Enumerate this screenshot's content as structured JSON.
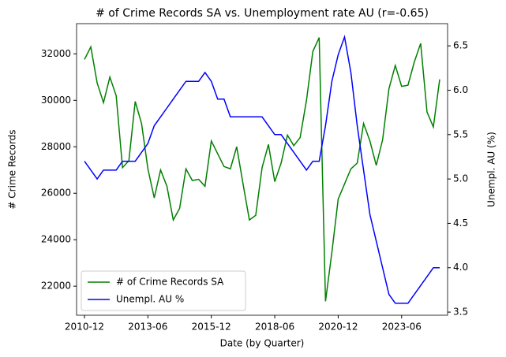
{
  "chart_data": {
    "type": "line",
    "title": "# of Crime Records SA vs. Unemployment rate AU (r=-0.65)",
    "x_label": "Date (by Quarter)",
    "y_label": "# Crime Records",
    "y2_label": "Unempl. AU (%)",
    "x": [
      "2010-12",
      "2011-03",
      "2011-06",
      "2011-09",
      "2011-12",
      "2012-03",
      "2012-06",
      "2012-09",
      "2012-12",
      "2013-03",
      "2013-06",
      "2013-09",
      "2013-12",
      "2014-03",
      "2014-06",
      "2014-09",
      "2014-12",
      "2015-03",
      "2015-06",
      "2015-09",
      "2015-12",
      "2016-03",
      "2016-06",
      "2016-09",
      "2016-12",
      "2017-03",
      "2017-06",
      "2017-09",
      "2017-12",
      "2018-03",
      "2018-06",
      "2018-09",
      "2018-12",
      "2019-03",
      "2019-06",
      "2019-09",
      "2019-12",
      "2020-03",
      "2020-06",
      "2020-09",
      "2020-12",
      "2021-03",
      "2021-06",
      "2021-09",
      "2021-12",
      "2022-03",
      "2022-06",
      "2022-09",
      "2022-12",
      "2023-03",
      "2023-06",
      "2023-09",
      "2023-12",
      "2024-03",
      "2024-06",
      "2024-09",
      "2024-12"
    ],
    "xticks": [
      "2010-12",
      "2013-06",
      "2015-12",
      "2018-06",
      "2020-12",
      "2023-06"
    ],
    "series": [
      {
        "name": "# of Crime Records SA",
        "color": "green",
        "axis": "y",
        "values": [
          31760,
          32300,
          30750,
          29900,
          31000,
          30200,
          27100,
          27400,
          29950,
          29000,
          27050,
          25800,
          27000,
          26300,
          24850,
          25350,
          27050,
          26550,
          26600,
          26300,
          28250,
          27700,
          27150,
          27050,
          28000,
          26400,
          24850,
          25050,
          27100,
          28100,
          26500,
          27300,
          28500,
          28050,
          28400,
          30000,
          32100,
          32700,
          21350,
          23450,
          25750,
          26400,
          27050,
          27300,
          29000,
          28250,
          27200,
          28300,
          30500,
          31500,
          30600,
          30650,
          31650,
          32450,
          29500,
          28850,
          30900
        ]
      },
      {
        "name": "Unempl. AU %",
        "color": "blue",
        "axis": "y2",
        "values": [
          5.2,
          5.1,
          5.0,
          5.1,
          5.1,
          5.1,
          5.2,
          5.2,
          5.2,
          5.3,
          5.4,
          5.6,
          5.7,
          5.8,
          5.9,
          6.0,
          6.1,
          6.1,
          6.1,
          6.2,
          6.1,
          5.9,
          5.9,
          5.7,
          5.7,
          5.7,
          5.7,
          5.7,
          5.7,
          5.6,
          5.5,
          5.5,
          5.4,
          5.3,
          5.2,
          5.1,
          5.2,
          5.2,
          5.6,
          6.1,
          6.4,
          6.6,
          6.2,
          5.6,
          5.1,
          4.6,
          4.3,
          4.0,
          3.7,
          3.6,
          3.6,
          3.6,
          3.7,
          3.8,
          3.9,
          4.0,
          4.0
        ]
      }
    ],
    "ylim": [
      20750,
      33300
    ],
    "yticks": [
      22000,
      24000,
      26000,
      28000,
      30000,
      32000
    ],
    "y2lim": [
      3.465,
      6.75
    ],
    "y2ticks": [
      3.5,
      {
        "value": 4,
        "label": "4.0"
      },
      4.5,
      {
        "value": 5,
        "label": "5.0"
      },
      5.5,
      {
        "value": 6,
        "label": "6.0"
      },
      6.5
    ],
    "legend": "lower left"
  }
}
